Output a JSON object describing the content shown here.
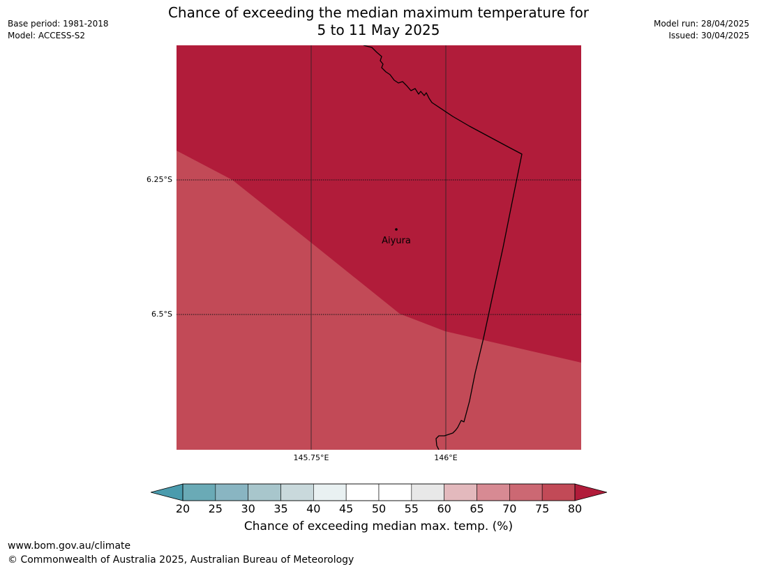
{
  "title": {
    "line1": "Chance of exceeding the median maximum temperature for",
    "line2": "5 to 11 May 2025"
  },
  "meta": {
    "base_period": "Base period: 1981-2018",
    "model": "Model: ACCESS-S2",
    "model_run": "Model run: 28/04/2025",
    "issued": "Issued: 30/04/2025"
  },
  "map": {
    "lat_ticks": [
      "6.25°S",
      "6.5°S"
    ],
    "lon_ticks": [
      "145.75°E",
      "146°E"
    ],
    "place": {
      "name": "Aiyura"
    },
    "fill_colors": {
      "75-80": "#c24a57",
      ">80": "#b11c3a"
    }
  },
  "colorbar": {
    "labels": [
      "20",
      "25",
      "30",
      "35",
      "40",
      "45",
      "50",
      "55",
      "60",
      "65",
      "70",
      "75",
      "80"
    ],
    "colors": [
      "#6aaab6",
      "#89b5c2",
      "#a8c6cc",
      "#c9d9dc",
      "#e9f1f2",
      "#ffffff",
      "#ffffff",
      "#e8e8e8",
      "#e3b9bd",
      "#d78a93",
      "#cc6873",
      "#c24a57"
    ],
    "low_color": "#4a9bad",
    "high_color": "#b11c3a",
    "title": "Chance of exceeding median max. temp. (%)"
  },
  "footer": {
    "site": "www.bom.gov.au/climate",
    "copyright": "© Commonwealth of Australia 2025, Australian Bureau of Meteorology"
  }
}
